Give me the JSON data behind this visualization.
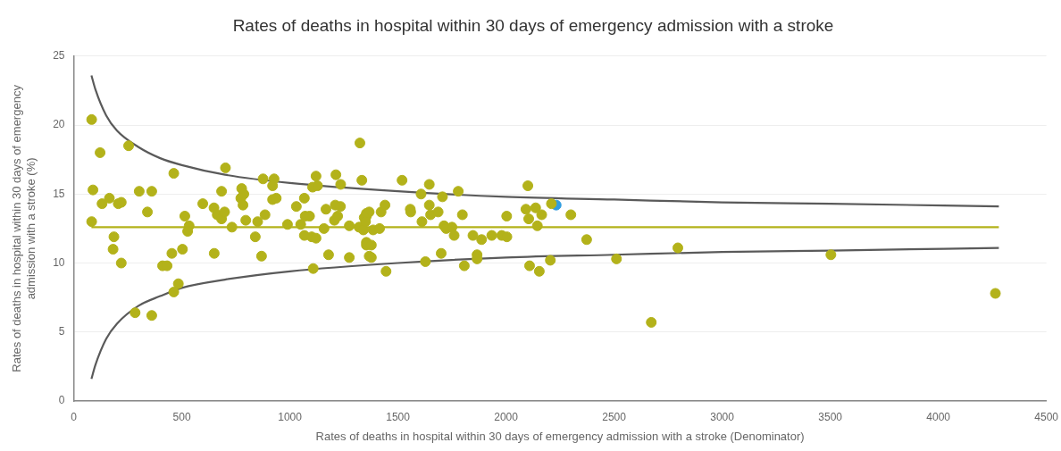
{
  "chart_data": {
    "type": "scatter",
    "title": "Rates of deaths in hospital within 30 days of emergency admission with a stroke",
    "xlabel": "Rates of deaths in hospital within 30 days of emergency admission with a stroke (Denominator)",
    "ylabel": "Rates of deaths in hospital within 30 days of emergency admission with a stroke (%)",
    "xlim": [
      0,
      4500
    ],
    "xticks": [
      0,
      500,
      1000,
      1500,
      2000,
      2500,
      3000,
      3500,
      4000,
      4500
    ],
    "ylim": [
      0,
      25
    ],
    "yticks": [
      0,
      5,
      10,
      15,
      20,
      25
    ],
    "grid": "y",
    "legend": false,
    "marker": "circle",
    "series": [
      {
        "type": "line",
        "color": "#5a5a5a",
        "marker": "none",
        "x": [
          82,
          100,
          150,
          200,
          300,
          400,
          500,
          700,
          1000,
          1500,
          2000,
          2500,
          3000,
          3500,
          4280
        ],
        "values": [
          23.6,
          22.6,
          20.7,
          19.6,
          18.4,
          17.6,
          17.1,
          16.4,
          15.8,
          15.2,
          14.8,
          14.6,
          14.4,
          14.3,
          14.1
        ]
      },
      {
        "type": "line",
        "color": "#5a5a5a",
        "marker": "none",
        "x": [
          82,
          100,
          150,
          200,
          300,
          400,
          500,
          700,
          1000,
          1500,
          2000,
          2500,
          3000,
          3500,
          4280
        ],
        "values": [
          1.6,
          2.6,
          4.5,
          5.6,
          6.9,
          7.6,
          8.2,
          8.8,
          9.4,
          10.0,
          10.4,
          10.6,
          10.8,
          10.9,
          11.1
        ]
      },
      {
        "type": "line",
        "color": "#b3b21a",
        "marker": "none",
        "x": [
          82,
          4280
        ],
        "values": [
          12.6,
          12.6
        ]
      },
      {
        "type": "scatter",
        "color": "#b3b21a",
        "x": [
          83,
          122,
          254,
          89,
          131,
          165,
          206,
          220,
          303,
          361,
          463,
          341,
          83,
          186,
          182,
          220,
          411,
          432,
          454,
          503,
          514,
          534,
          527,
          484,
          463,
          284,
          361,
          597,
          649,
          664,
          684,
          698,
          684,
          702,
          650,
          732,
          777,
          787,
          773,
          783,
          796,
          840,
          851,
          869,
          885,
          876,
          927,
          920,
          920,
          937,
          989,
          1030,
          1050,
          1067,
          1071,
          1091,
          1067,
          1101,
          1121,
          1108,
          1105,
          1128,
          1121,
          1158,
          1167,
          1179,
          1213,
          1235,
          1210,
          1234,
          1206,
          1221,
          1275,
          1275,
          1333,
          1324,
          1320,
          1354,
          1354,
          1367,
          1340,
          1354,
          1367,
          1344,
          1350,
          1385,
          1415,
          1422,
          1440,
          1354,
          1377,
          1377,
          1445,
          1519,
          1557,
          1559,
          1611,
          1607,
          1645,
          1645,
          1651,
          1686,
          1706,
          1700,
          1627,
          1713,
          1723,
          1750,
          1760,
          1779,
          1798,
          1807,
          1847,
          1887,
          1866,
          1866,
          1934,
          1980,
          2004,
          2003,
          2092,
          2101,
          2105,
          2137,
          2145,
          2165,
          2109,
          2154,
          2205,
          2210,
          2300,
          2373,
          2511,
          2672,
          2795,
          3503,
          4264
        ],
        "values": [
          20.4,
          18.0,
          18.5,
          15.3,
          14.3,
          14.7,
          14.3,
          14.4,
          15.2,
          15.2,
          16.5,
          13.7,
          13.0,
          11.9,
          11.0,
          10.0,
          9.8,
          9.8,
          10.7,
          11.0,
          13.4,
          12.7,
          12.3,
          8.5,
          7.9,
          6.4,
          6.2,
          14.3,
          14.0,
          13.5,
          13.2,
          13.7,
          15.2,
          16.9,
          10.7,
          12.6,
          15.4,
          15.0,
          14.7,
          14.2,
          13.1,
          11.9,
          13.0,
          10.5,
          13.5,
          16.1,
          16.1,
          15.6,
          14.6,
          14.7,
          12.8,
          14.1,
          12.8,
          14.7,
          13.4,
          13.4,
          12.0,
          11.9,
          11.8,
          9.6,
          15.5,
          15.6,
          16.3,
          12.5,
          13.9,
          10.6,
          16.4,
          15.7,
          14.2,
          14.1,
          13.1,
          13.4,
          12.7,
          10.4,
          16.0,
          18.7,
          12.6,
          13.4,
          11.5,
          10.5,
          12.4,
          13.6,
          13.7,
          13.3,
          13.0,
          12.4,
          12.5,
          13.7,
          14.2,
          11.3,
          11.3,
          10.4,
          9.4,
          16.0,
          13.9,
          13.7,
          13.0,
          15.0,
          15.7,
          14.2,
          13.5,
          13.7,
          14.8,
          10.7,
          10.1,
          12.7,
          12.5,
          12.6,
          12.0,
          15.2,
          13.5,
          9.8,
          12.0,
          11.7,
          10.6,
          10.3,
          12.0,
          12.0,
          11.9,
          13.4,
          13.9,
          15.6,
          13.2,
          14.0,
          12.7,
          13.5,
          9.8,
          9.4,
          10.2,
          14.3,
          13.5,
          11.7,
          10.3,
          5.7,
          11.1,
          10.6,
          7.8
        ]
      },
      {
        "type": "scatter",
        "color": "#2f9de0",
        "x": [
          2232
        ],
        "values": [
          14.2
        ]
      }
    ]
  }
}
